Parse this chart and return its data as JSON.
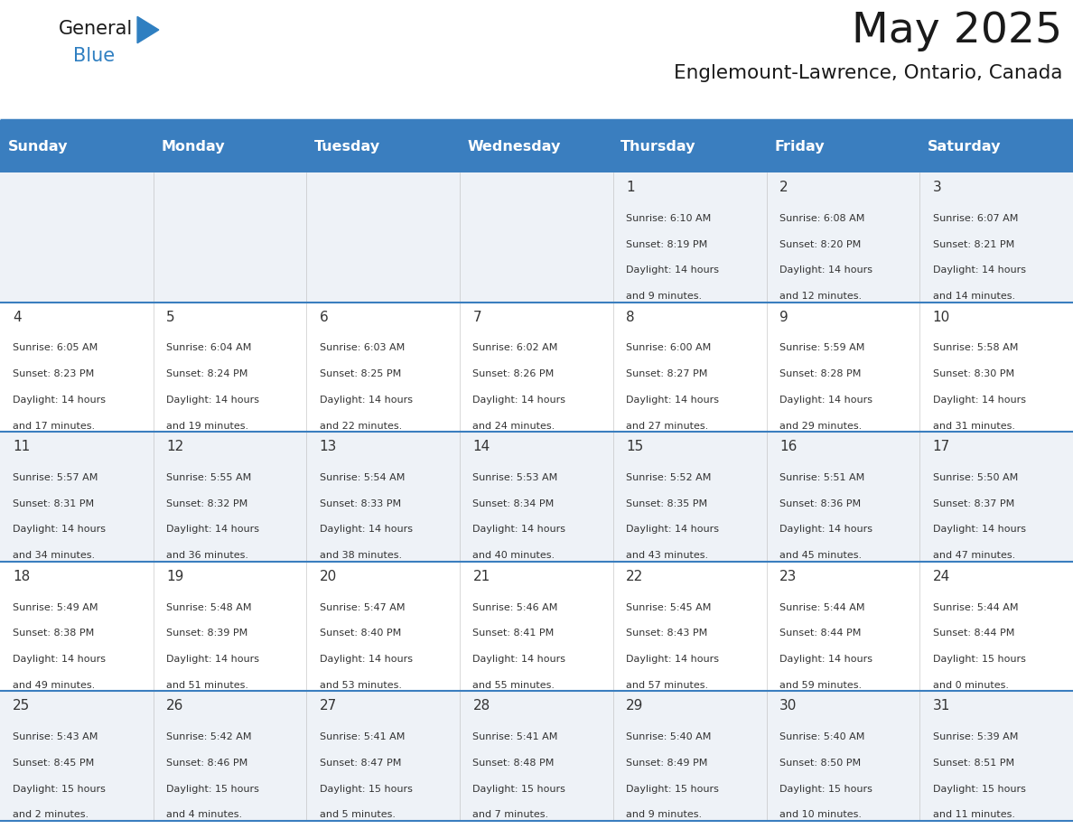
{
  "title": "May 2025",
  "subtitle": "Englemount-Lawrence, Ontario, Canada",
  "days_of_week": [
    "Sunday",
    "Monday",
    "Tuesday",
    "Wednesday",
    "Thursday",
    "Friday",
    "Saturday"
  ],
  "header_bg": "#3a7ebf",
  "header_text": "#ffffff",
  "cell_bg_light": "#eef2f7",
  "cell_bg_white": "#ffffff",
  "border_color": "#3a7ebf",
  "text_color": "#333333",
  "calendar_data": [
    [
      null,
      null,
      null,
      null,
      {
        "day": 1,
        "sunrise": "6:10 AM",
        "sunset": "8:19 PM",
        "daylight": "14 hours and 9 minutes."
      },
      {
        "day": 2,
        "sunrise": "6:08 AM",
        "sunset": "8:20 PM",
        "daylight": "14 hours and 12 minutes."
      },
      {
        "day": 3,
        "sunrise": "6:07 AM",
        "sunset": "8:21 PM",
        "daylight": "14 hours and 14 minutes."
      }
    ],
    [
      {
        "day": 4,
        "sunrise": "6:05 AM",
        "sunset": "8:23 PM",
        "daylight": "14 hours and 17 minutes."
      },
      {
        "day": 5,
        "sunrise": "6:04 AM",
        "sunset": "8:24 PM",
        "daylight": "14 hours and 19 minutes."
      },
      {
        "day": 6,
        "sunrise": "6:03 AM",
        "sunset": "8:25 PM",
        "daylight": "14 hours and 22 minutes."
      },
      {
        "day": 7,
        "sunrise": "6:02 AM",
        "sunset": "8:26 PM",
        "daylight": "14 hours and 24 minutes."
      },
      {
        "day": 8,
        "sunrise": "6:00 AM",
        "sunset": "8:27 PM",
        "daylight": "14 hours and 27 minutes."
      },
      {
        "day": 9,
        "sunrise": "5:59 AM",
        "sunset": "8:28 PM",
        "daylight": "14 hours and 29 minutes."
      },
      {
        "day": 10,
        "sunrise": "5:58 AM",
        "sunset": "8:30 PM",
        "daylight": "14 hours and 31 minutes."
      }
    ],
    [
      {
        "day": 11,
        "sunrise": "5:57 AM",
        "sunset": "8:31 PM",
        "daylight": "14 hours and 34 minutes."
      },
      {
        "day": 12,
        "sunrise": "5:55 AM",
        "sunset": "8:32 PM",
        "daylight": "14 hours and 36 minutes."
      },
      {
        "day": 13,
        "sunrise": "5:54 AM",
        "sunset": "8:33 PM",
        "daylight": "14 hours and 38 minutes."
      },
      {
        "day": 14,
        "sunrise": "5:53 AM",
        "sunset": "8:34 PM",
        "daylight": "14 hours and 40 minutes."
      },
      {
        "day": 15,
        "sunrise": "5:52 AM",
        "sunset": "8:35 PM",
        "daylight": "14 hours and 43 minutes."
      },
      {
        "day": 16,
        "sunrise": "5:51 AM",
        "sunset": "8:36 PM",
        "daylight": "14 hours and 45 minutes."
      },
      {
        "day": 17,
        "sunrise": "5:50 AM",
        "sunset": "8:37 PM",
        "daylight": "14 hours and 47 minutes."
      }
    ],
    [
      {
        "day": 18,
        "sunrise": "5:49 AM",
        "sunset": "8:38 PM",
        "daylight": "14 hours and 49 minutes."
      },
      {
        "day": 19,
        "sunrise": "5:48 AM",
        "sunset": "8:39 PM",
        "daylight": "14 hours and 51 minutes."
      },
      {
        "day": 20,
        "sunrise": "5:47 AM",
        "sunset": "8:40 PM",
        "daylight": "14 hours and 53 minutes."
      },
      {
        "day": 21,
        "sunrise": "5:46 AM",
        "sunset": "8:41 PM",
        "daylight": "14 hours and 55 minutes."
      },
      {
        "day": 22,
        "sunrise": "5:45 AM",
        "sunset": "8:43 PM",
        "daylight": "14 hours and 57 minutes."
      },
      {
        "day": 23,
        "sunrise": "5:44 AM",
        "sunset": "8:44 PM",
        "daylight": "14 hours and 59 minutes."
      },
      {
        "day": 24,
        "sunrise": "5:44 AM",
        "sunset": "8:44 PM",
        "daylight": "15 hours and 0 minutes."
      }
    ],
    [
      {
        "day": 25,
        "sunrise": "5:43 AM",
        "sunset": "8:45 PM",
        "daylight": "15 hours and 2 minutes."
      },
      {
        "day": 26,
        "sunrise": "5:42 AM",
        "sunset": "8:46 PM",
        "daylight": "15 hours and 4 minutes."
      },
      {
        "day": 27,
        "sunrise": "5:41 AM",
        "sunset": "8:47 PM",
        "daylight": "15 hours and 5 minutes."
      },
      {
        "day": 28,
        "sunrise": "5:41 AM",
        "sunset": "8:48 PM",
        "daylight": "15 hours and 7 minutes."
      },
      {
        "day": 29,
        "sunrise": "5:40 AM",
        "sunset": "8:49 PM",
        "daylight": "15 hours and 9 minutes."
      },
      {
        "day": 30,
        "sunrise": "5:40 AM",
        "sunset": "8:50 PM",
        "daylight": "15 hours and 10 minutes."
      },
      {
        "day": 31,
        "sunrise": "5:39 AM",
        "sunset": "8:51 PM",
        "daylight": "15 hours and 11 minutes."
      }
    ]
  ]
}
